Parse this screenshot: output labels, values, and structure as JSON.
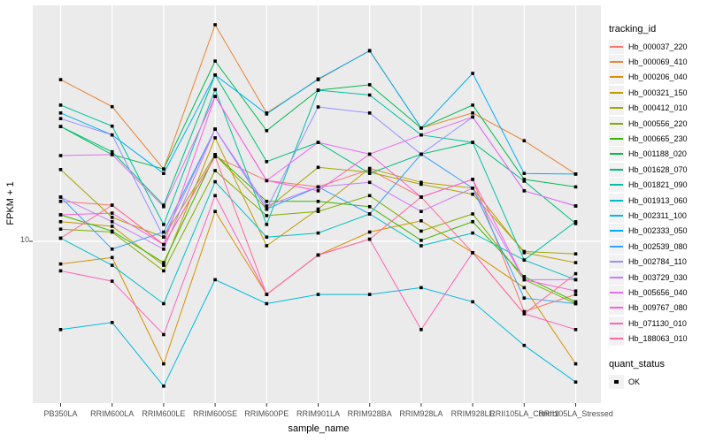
{
  "figure": {
    "background": "#ffffff",
    "panel_background": "#ebebeb",
    "grid_color": "#ffffff",
    "point_color": "#000000",
    "tick_color": "#333333",
    "axis_text_color": "#4d4d4d"
  },
  "axes": {
    "x_title": "sample_name",
    "y_title": "FPKM + 1",
    "y_tick_label": "10"
  },
  "legend": {
    "tracking_title": "tracking_id",
    "quant_title": "quant_status",
    "quant_item_label": "OK",
    "quant_marker": "black-square-point"
  },
  "chart_data": {
    "type": "line",
    "title": "",
    "xlabel": "sample_name",
    "ylabel": "FPKM + 1",
    "y_scale": "log10",
    "ylim": [
      2.2,
      90
    ],
    "y_ticks": [
      10
    ],
    "grid": "major-on",
    "legend_position": "right",
    "marker": "black-square",
    "categories": [
      "PB350LA",
      "RRIM600LA",
      "RRIM600LE",
      "RRIM600SE",
      "RRIM600PE",
      "RRIM901LA",
      "RRIM928BA",
      "RRIM928LA",
      "RRIM928LE",
      "RRII105LA_Control",
      "RRII105LA_Stressed"
    ],
    "series": [
      {
        "name": "Hb_000037_220",
        "color": "#F8766D",
        "values": [
          14.5,
          14.0,
          9.7,
          22.0,
          17.6,
          16.6,
          19.5,
          15.1,
          17.8,
          5.2,
          6.1
        ]
      },
      {
        "name": "Hb_000069_410",
        "color": "#EA8331",
        "values": [
          45.0,
          35.0,
          19.6,
          75.0,
          33.0,
          45.0,
          59.0,
          28.7,
          33.0,
          25.5,
          18.7
        ]
      },
      {
        "name": "Hb_000206_040",
        "color": "#D89000",
        "values": [
          8.1,
          8.6,
          3.2,
          13.2,
          6.1,
          8.8,
          10.9,
          12.1,
          9.0,
          6.5,
          3.2
        ]
      },
      {
        "name": "Hb_000321_150",
        "color": "#C09B00",
        "values": [
          12.0,
          11.5,
          8.0,
          26.2,
          9.6,
          13.5,
          19.7,
          17.3,
          16.4,
          9.0,
          8.2
        ]
      },
      {
        "name": "Hb_000412_010",
        "color": "#A3A500",
        "values": [
          19.5,
          12.5,
          10.4,
          22.4,
          13.5,
          19.9,
          19.0,
          17.0,
          15.5,
          9.1,
          8.9
        ]
      },
      {
        "name": "Hb_000556_220",
        "color": "#7CAE00",
        "values": [
          11.2,
          10.9,
          7.6,
          19.3,
          12.7,
          13.2,
          15.3,
          11.0,
          12.9,
          7.0,
          5.6
        ]
      },
      {
        "name": "Hb_000665_230",
        "color": "#39B600",
        "values": [
          12.8,
          11.0,
          8.2,
          22.4,
          14.5,
          14.5,
          13.8,
          10.1,
          12.0,
          7.2,
          5.7
        ]
      },
      {
        "name": "Hb_001188_020",
        "color": "#00BB4E",
        "values": [
          29.1,
          22.4,
          19.6,
          53.5,
          28.0,
          40.8,
          42.9,
          28.7,
          35.5,
          17.8,
          16.6
        ]
      },
      {
        "name": "Hb_001628_070",
        "color": "#00BF7D",
        "values": [
          29.1,
          23.0,
          14.0,
          47.0,
          21.0,
          25.1,
          18.8,
          22.5,
          25.1,
          17.5,
          11.8
        ]
      },
      {
        "name": "Hb_001821_090",
        "color": "#00C1A3",
        "values": [
          35.5,
          29.2,
          11.7,
          41.0,
          11.7,
          40.8,
          39.0,
          26.9,
          25.1,
          8.4,
          12.0
        ]
      },
      {
        "name": "Hb_001913_060",
        "color": "#00BFC4",
        "values": [
          10.3,
          8.0,
          5.6,
          17.4,
          10.4,
          10.8,
          12.9,
          9.6,
          10.8,
          8.4,
          7.0
        ]
      },
      {
        "name": "Hb_002311_100",
        "color": "#00BAE0",
        "values": [
          4.4,
          4.7,
          2.6,
          7.0,
          5.6,
          6.1,
          6.1,
          6.5,
          5.7,
          3.8,
          2.7
        ]
      },
      {
        "name": "Hb_002333_050",
        "color": "#00B0F6",
        "values": [
          33.0,
          26.9,
          18.8,
          47.0,
          32.7,
          45.3,
          58.8,
          28.7,
          47.7,
          18.8,
          18.7
        ]
      },
      {
        "name": "Hb_002539_080",
        "color": "#35A2FF",
        "values": [
          15.1,
          9.3,
          10.9,
          28.4,
          13.5,
          16.6,
          12.9,
          22.5,
          16.4,
          5.9,
          5.6
        ]
      },
      {
        "name": "Hb_002784_110",
        "color": "#9590FF",
        "values": [
          31.3,
          26.9,
          10.4,
          28.4,
          13.5,
          34.9,
          33.0,
          22.5,
          31.8,
          16.0,
          13.9
        ]
      },
      {
        "name": "Hb_003729_030",
        "color": "#C77CFF",
        "values": [
          15.1,
          12.0,
          9.3,
          28.4,
          13.9,
          16.6,
          17.3,
          13.2,
          16.4,
          7.0,
          7.0
        ]
      },
      {
        "name": "Hb_005656_040",
        "color": "#E76BF3",
        "values": [
          22.2,
          22.4,
          13.8,
          38.5,
          17.6,
          25.1,
          22.5,
          26.9,
          31.8,
          16.0,
          13.9
        ]
      },
      {
        "name": "Hb_009767_080",
        "color": "#FA62DB",
        "values": [
          12.8,
          13.0,
          9.7,
          38.5,
          17.6,
          16.0,
          22.5,
          15.1,
          17.8,
          7.0,
          6.3
        ]
      },
      {
        "name": "Hb_071130_010",
        "color": "#FF62BC",
        "values": [
          7.6,
          6.9,
          4.2,
          15.3,
          6.1,
          8.8,
          10.2,
          4.4,
          9.0,
          5.1,
          4.4
        ]
      },
      {
        "name": "Hb_188063_010",
        "color": "#FF6A98",
        "values": [
          10.3,
          14.0,
          9.7,
          22.0,
          6.1,
          8.8,
          10.2,
          15.1,
          9.0,
          5.1,
          7.4
        ]
      }
    ]
  }
}
